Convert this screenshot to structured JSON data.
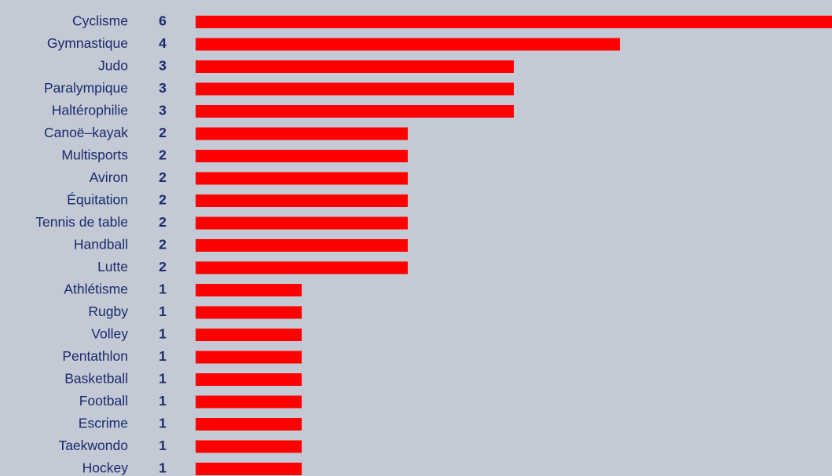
{
  "chart_data": {
    "type": "bar",
    "orientation": "horizontal",
    "color": "#ff0000",
    "categories": [
      "Cyclisme",
      "Gymnastique",
      "Judo",
      "Paralympique",
      "Haltérophilie",
      "Canoë–kayak",
      "Multisports",
      "Aviron",
      "Équitation",
      "Tennis de table",
      "Handball",
      "Lutte",
      "Athlétisme",
      "Rugby",
      "Volley",
      "Pentathlon",
      "Basketball",
      "Football",
      "Escrime",
      "Taekwondo",
      "Hockey"
    ],
    "values": [
      6,
      4,
      3,
      3,
      3,
      2,
      2,
      2,
      2,
      2,
      2,
      2,
      1,
      1,
      1,
      1,
      1,
      1,
      1,
      1,
      1
    ]
  }
}
